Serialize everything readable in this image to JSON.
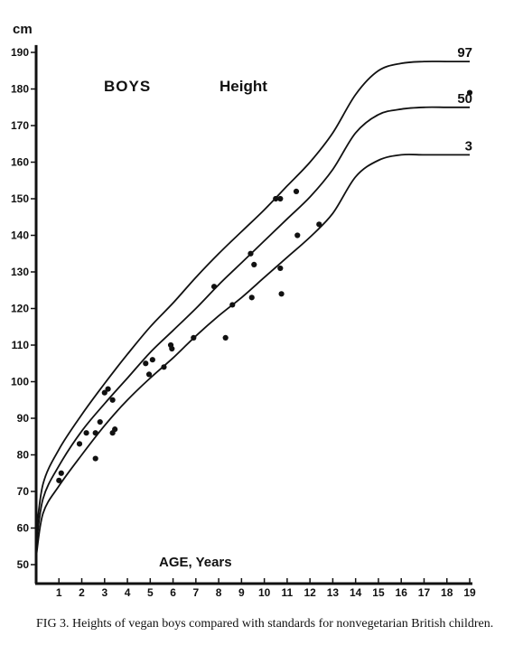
{
  "chart_data": {
    "type": "line",
    "title": "BOYS",
    "subtitle": "Height",
    "xlabel": "AGE, Years",
    "ylabel": "cm",
    "xlim": [
      0,
      19
    ],
    "ylim": [
      45,
      192
    ],
    "x_ticks": [
      1,
      2,
      3,
      4,
      5,
      6,
      7,
      8,
      9,
      10,
      11,
      12,
      13,
      14,
      15,
      16,
      17,
      18,
      19
    ],
    "y_ticks": [
      50,
      60,
      70,
      80,
      90,
      100,
      110,
      120,
      130,
      140,
      150,
      160,
      170,
      180,
      190
    ],
    "grid": false,
    "series": [
      {
        "name": "97",
        "x": [
          0,
          0.3,
          1,
          2,
          3,
          4,
          5,
          6,
          7,
          8,
          9,
          10,
          11,
          12,
          13,
          14,
          15,
          16,
          17,
          18,
          19
        ],
        "values": [
          58,
          72,
          81.5,
          91,
          99.5,
          107.5,
          115,
          121.5,
          128.5,
          135,
          141,
          147,
          153.5,
          160,
          168,
          178.5,
          185,
          187,
          187.5,
          187.5,
          187.5
        ]
      },
      {
        "name": "50",
        "x": [
          0,
          0.3,
          1,
          2,
          3,
          4,
          5,
          6,
          7,
          8,
          9,
          10,
          11,
          12,
          13,
          14,
          15,
          16,
          17,
          18,
          19
        ],
        "values": [
          55,
          68,
          77,
          86.5,
          94,
          101,
          108,
          114,
          120,
          126.5,
          132.5,
          138.5,
          144.5,
          150.5,
          158,
          168,
          173,
          174.5,
          175,
          175,
          175
        ]
      },
      {
        "name": "3",
        "x": [
          0,
          0.3,
          1,
          2,
          3,
          4,
          5,
          6,
          7,
          8,
          9,
          10,
          11,
          12,
          13,
          14,
          15,
          16,
          17,
          18,
          19
        ],
        "values": [
          52,
          64,
          71.5,
          80,
          88,
          95,
          101,
          106.5,
          112.5,
          118,
          123,
          128.5,
          134,
          139.5,
          146,
          156,
          160.5,
          162,
          162,
          162,
          162
        ]
      }
    ],
    "points": {
      "x": [
        1.0,
        1.1,
        1.9,
        2.2,
        2.6,
        2.8,
        2.6,
        3.0,
        3.15,
        3.35,
        3.35,
        3.45,
        4.8,
        4.95,
        5.1,
        5.6,
        5.9,
        5.95,
        6.9,
        7.8,
        8.3,
        8.6,
        9.4,
        9.45,
        9.55,
        10.5,
        10.7,
        10.7,
        10.75,
        11.4,
        11.45,
        12.4,
        19.0
      ],
      "y": [
        73,
        75,
        83,
        86,
        86,
        89,
        79,
        97,
        98,
        95,
        86,
        87,
        105,
        102,
        106,
        104,
        110,
        109,
        112,
        126,
        112,
        121,
        135,
        123,
        132,
        150,
        150,
        131,
        124,
        152,
        140,
        143,
        179
      ]
    },
    "annotations": [
      "BOYS",
      "Height",
      "AGE, Years",
      "cm"
    ]
  },
  "caption": "FIG 3. Heights of vegan boys compared with standards for nonvegetarian British children.",
  "colors": {
    "ink": "#111111",
    "background": "#ffffff"
  }
}
